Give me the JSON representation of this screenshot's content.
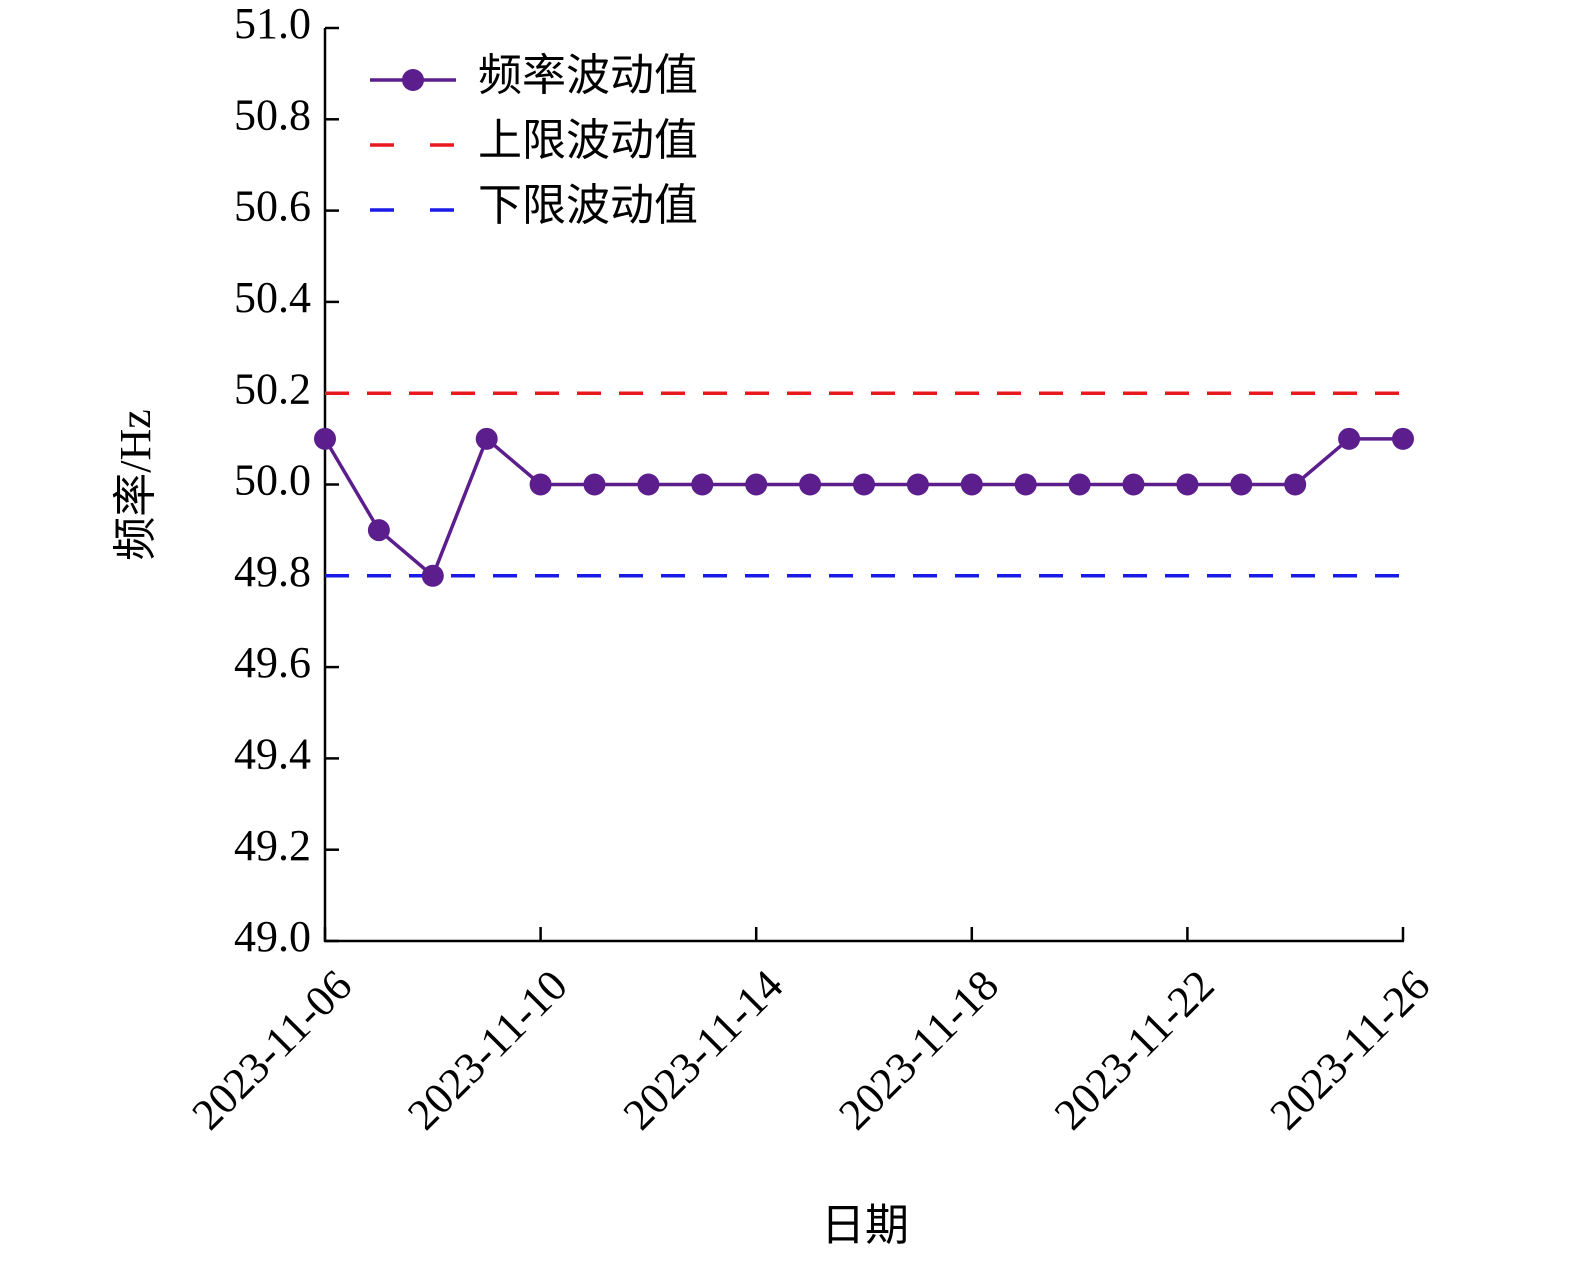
{
  "chart_data": {
    "type": "line",
    "x": [
      "2023-11-06",
      "2023-11-07",
      "2023-11-08",
      "2023-11-09",
      "2023-11-10",
      "2023-11-11",
      "2023-11-12",
      "2023-11-13",
      "2023-11-14",
      "2023-11-15",
      "2023-11-16",
      "2023-11-17",
      "2023-11-18",
      "2023-11-19",
      "2023-11-20",
      "2023-11-21",
      "2023-11-22",
      "2023-11-23",
      "2023-11-24",
      "2023-11-25",
      "2023-11-26"
    ],
    "series": [
      {
        "name": "频率波动值",
        "color": "#5b1e8c",
        "values": [
          50.1,
          49.9,
          49.8,
          50.1,
          50.0,
          50.0,
          50.0,
          50.0,
          50.0,
          50.0,
          50.0,
          50.0,
          50.0,
          50.0,
          50.0,
          50.0,
          50.0,
          50.0,
          50.0,
          50.1,
          50.1
        ]
      }
    ],
    "hlines": [
      {
        "name": "上限波动值",
        "color": "#e8191c",
        "value": 50.2
      },
      {
        "name": "下限波动值",
        "color": "#1a1ae6",
        "value": 49.8
      }
    ],
    "xlabel": "日期",
    "ylabel": "频率/Hz",
    "xlim": [
      "2023-11-06",
      "2023-11-26"
    ],
    "xticks": [
      "2023-11-06",
      "2023-11-10",
      "2023-11-14",
      "2023-11-18",
      "2023-11-22",
      "2023-11-26"
    ],
    "ylim": [
      49.0,
      51.0
    ],
    "yticks": [
      {
        "value": 49.0,
        "label": "49.0"
      },
      {
        "value": 49.2,
        "label": "49.2"
      },
      {
        "value": 49.4,
        "label": "49.4"
      },
      {
        "value": 49.6,
        "label": "49.6"
      },
      {
        "value": 49.8,
        "label": "49.8"
      },
      {
        "value": 50.0,
        "label": "50.0"
      },
      {
        "value": 50.2,
        "label": "50.2"
      },
      {
        "value": 50.4,
        "label": "50.4"
      },
      {
        "value": 50.6,
        "label": "50.6"
      },
      {
        "value": 50.8,
        "label": "50.8"
      },
      {
        "value": 51.0,
        "label": "51.0"
      }
    ],
    "legend": "upper left"
  }
}
